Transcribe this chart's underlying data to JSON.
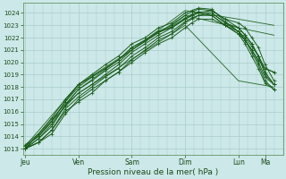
{
  "bg_color": "#cce8e8",
  "grid_color": "#aacccc",
  "line_color": "#1a5c1a",
  "ylabel_ticks": [
    1013,
    1014,
    1015,
    1016,
    1017,
    1018,
    1019,
    1020,
    1021,
    1022,
    1023,
    1024
  ],
  "ylim": [
    1012.5,
    1024.8
  ],
  "xlabel": "Pression niveau de la mer( hPa )",
  "x_day_labels": [
    "Jeu",
    "Ven",
    "Sam",
    "Dim",
    "Lun",
    "Ma"
  ],
  "x_day_positions": [
    0,
    24,
    48,
    72,
    96,
    108
  ],
  "xlim": [
    -1,
    116
  ],
  "lines": [
    {
      "x": [
        0,
        6,
        12,
        18,
        24,
        30,
        36,
        42,
        48,
        54,
        60,
        66,
        72,
        75,
        78,
        84,
        90,
        96,
        99,
        102,
        105,
        108,
        112
      ],
      "y": [
        1013.0,
        1013.8,
        1014.8,
        1016.5,
        1017.5,
        1018.2,
        1019.0,
        1019.8,
        1020.8,
        1021.5,
        1022.2,
        1022.8,
        1023.5,
        1023.8,
        1024.0,
        1024.2,
        1023.5,
        1023.2,
        1022.8,
        1022.0,
        1021.2,
        1019.8,
        1018.5
      ],
      "straight": false
    },
    {
      "x": [
        0,
        6,
        12,
        18,
        24,
        30,
        36,
        42,
        48,
        54,
        60,
        66,
        72,
        75,
        78,
        84,
        90,
        96,
        99,
        102,
        105,
        108,
        112
      ],
      "y": [
        1013.0,
        1013.5,
        1014.5,
        1016.2,
        1017.2,
        1018.0,
        1018.8,
        1019.5,
        1020.5,
        1021.2,
        1022.0,
        1022.5,
        1023.3,
        1023.6,
        1023.8,
        1024.0,
        1023.2,
        1022.8,
        1022.2,
        1021.5,
        1020.5,
        1019.0,
        1018.2
      ],
      "straight": false
    },
    {
      "x": [
        0,
        6,
        12,
        18,
        24,
        30,
        36,
        42,
        48,
        54,
        60,
        66,
        72,
        75,
        78,
        84,
        90,
        96,
        99,
        102,
        105,
        108,
        112
      ],
      "y": [
        1013.2,
        1014.0,
        1015.2,
        1016.8,
        1018.0,
        1018.8,
        1019.5,
        1020.2,
        1021.2,
        1021.8,
        1022.5,
        1023.0,
        1023.8,
        1024.1,
        1024.3,
        1024.2,
        1023.5,
        1022.8,
        1022.2,
        1021.5,
        1020.5,
        1019.2,
        1018.2
      ],
      "straight": false
    },
    {
      "x": [
        0,
        6,
        12,
        18,
        24,
        30,
        36,
        42,
        48,
        54,
        60,
        66,
        72,
        75,
        78,
        84,
        90,
        96,
        99,
        102,
        105,
        108,
        112
      ],
      "y": [
        1013.3,
        1014.2,
        1015.5,
        1017.0,
        1018.2,
        1019.0,
        1019.8,
        1020.5,
        1021.5,
        1022.0,
        1022.8,
        1023.2,
        1024.0,
        1024.2,
        1024.4,
        1024.3,
        1023.3,
        1022.5,
        1021.8,
        1020.8,
        1019.8,
        1018.5,
        1017.8
      ],
      "straight": false
    },
    {
      "x": [
        0,
        6,
        12,
        18,
        24,
        30,
        36,
        42,
        48,
        54,
        60,
        66,
        72,
        75,
        78,
        84,
        90,
        96,
        99,
        102,
        105,
        108,
        112
      ],
      "y": [
        1013.0,
        1013.5,
        1014.5,
        1016.0,
        1016.8,
        1017.5,
        1018.5,
        1019.2,
        1020.2,
        1021.0,
        1021.8,
        1022.3,
        1023.2,
        1023.5,
        1023.8,
        1023.8,
        1023.0,
        1022.3,
        1021.8,
        1021.0,
        1020.2,
        1019.5,
        1019.2
      ],
      "straight": false
    },
    {
      "x": [
        0,
        6,
        12,
        18,
        24,
        30,
        36,
        42,
        48,
        54,
        60,
        66,
        72,
        75,
        78,
        84,
        90,
        96,
        99,
        102,
        105,
        108,
        112
      ],
      "y": [
        1013.0,
        1013.8,
        1015.0,
        1016.5,
        1017.8,
        1018.5,
        1019.3,
        1020.0,
        1021.0,
        1021.7,
        1022.4,
        1022.9,
        1023.6,
        1023.9,
        1024.1,
        1024.0,
        1023.2,
        1022.5,
        1021.8,
        1021.0,
        1020.0,
        1018.8,
        1018.2
      ],
      "straight": false
    },
    {
      "x": [
        0,
        6,
        12,
        18,
        24,
        30,
        36,
        42,
        48,
        54,
        60,
        66,
        72,
        75,
        78,
        84,
        90,
        96,
        99,
        102,
        105,
        108,
        112
      ],
      "y": [
        1013.0,
        1013.5,
        1014.2,
        1015.8,
        1017.0,
        1017.8,
        1018.5,
        1019.2,
        1020.0,
        1020.8,
        1021.5,
        1022.0,
        1022.8,
        1023.2,
        1023.5,
        1023.5,
        1023.0,
        1022.5,
        1022.0,
        1021.3,
        1020.5,
        1019.5,
        1019.2
      ],
      "straight": false
    },
    {
      "x": [
        0,
        6,
        12,
        18,
        24,
        30,
        36,
        42,
        48,
        54,
        60,
        66,
        72,
        75,
        78,
        84,
        90,
        96,
        99,
        102,
        105,
        108,
        112
      ],
      "y": [
        1013.2,
        1014.0,
        1015.2,
        1016.8,
        1018.2,
        1018.8,
        1019.5,
        1020.2,
        1021.2,
        1021.8,
        1022.5,
        1022.8,
        1023.5,
        1023.8,
        1024.0,
        1023.8,
        1023.0,
        1022.3,
        1021.5,
        1020.5,
        1019.5,
        1018.3,
        1017.8
      ],
      "straight": false
    },
    {
      "x": [
        0,
        24,
        72,
        96,
        112
      ],
      "y": [
        1013.2,
        1018.2,
        1023.8,
        1022.8,
        1022.2
      ],
      "straight": true
    },
    {
      "x": [
        0,
        24,
        72,
        96,
        112
      ],
      "y": [
        1013.0,
        1017.5,
        1023.0,
        1018.5,
        1018.0
      ],
      "straight": true
    },
    {
      "x": [
        0,
        24,
        72,
        96,
        112
      ],
      "y": [
        1013.0,
        1017.8,
        1024.2,
        1023.5,
        1023.0
      ],
      "straight": true
    }
  ],
  "linewidth": 0.7,
  "marker_lines": [
    0,
    1,
    2,
    3,
    4,
    5,
    6,
    7
  ]
}
